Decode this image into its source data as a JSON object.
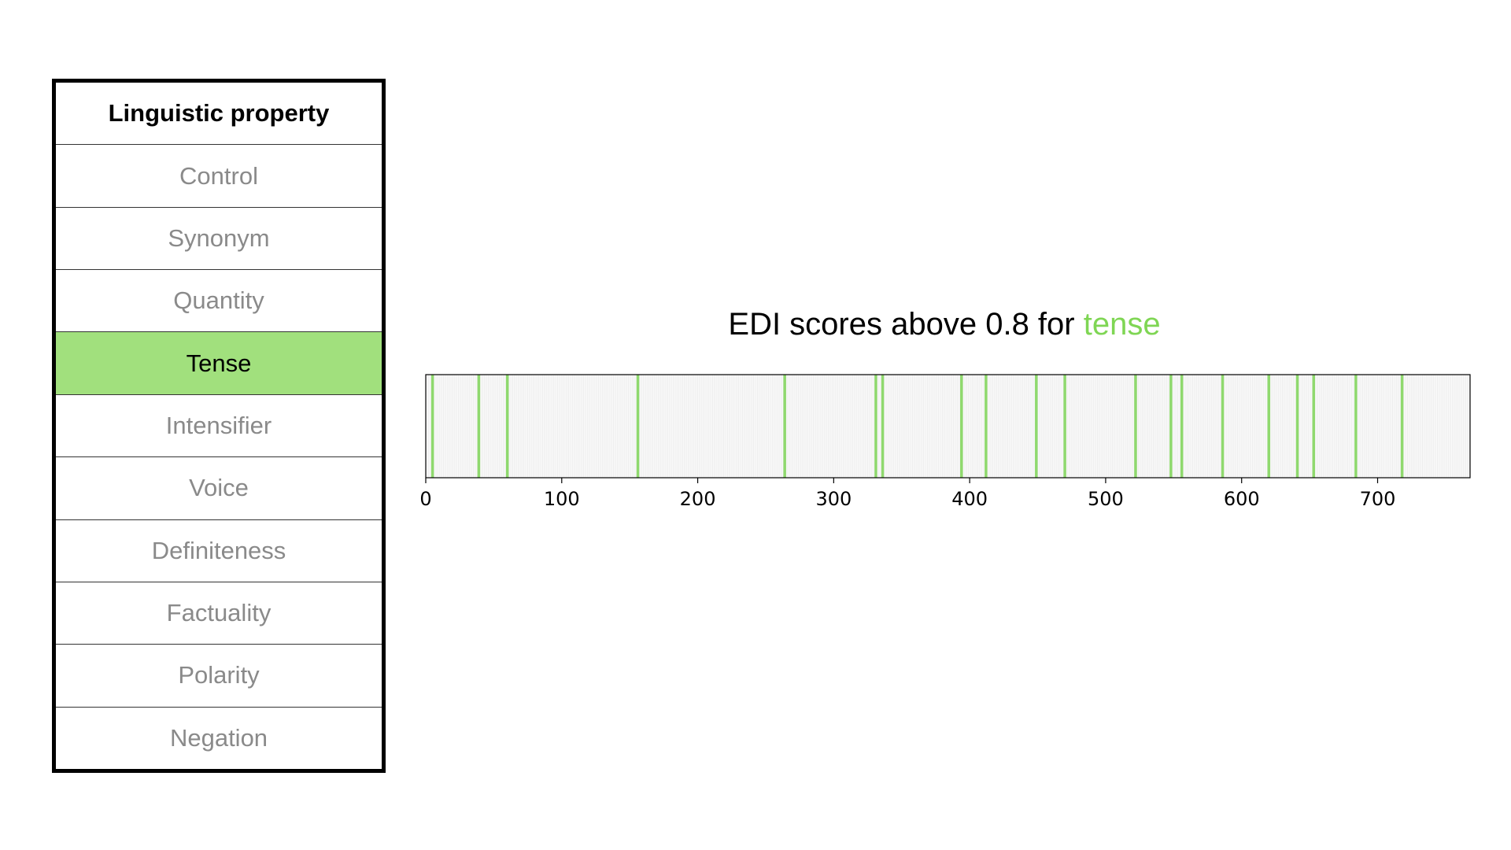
{
  "table": {
    "header": "Linguistic property",
    "rows": [
      {
        "label": "Control",
        "name": "control"
      },
      {
        "label": "Synonym",
        "name": "synonym"
      },
      {
        "label": "Quantity",
        "name": "quantity"
      },
      {
        "label": "Tense",
        "name": "tense",
        "selected": true
      },
      {
        "label": "Intensifier",
        "name": "intensifier"
      },
      {
        "label": "Voice",
        "name": "voice"
      },
      {
        "label": "Definiteness",
        "name": "definiteness"
      },
      {
        "label": "Factuality",
        "name": "factuality"
      },
      {
        "label": "Polarity",
        "name": "polarity"
      },
      {
        "label": "Negation",
        "name": "negation"
      }
    ]
  },
  "colors": {
    "highlight": "#a1e07d",
    "marker": "#8fd96e",
    "accent_text": "#7fd654",
    "muted_text": "#8a8a8a",
    "grid": "#ededed"
  },
  "chart_data": {
    "type": "bar",
    "title_prefix": "EDI scores above 0.8 for",
    "title_highlight": "tense",
    "xlim": [
      0,
      768
    ],
    "xticks": [
      0,
      100,
      200,
      300,
      400,
      500,
      600,
      700
    ],
    "xtick_labels": [
      "0",
      "100",
      "200",
      "300",
      "400",
      "500",
      "600",
      "700"
    ],
    "grid": true,
    "values": [
      5,
      39,
      60,
      156,
      264,
      331,
      336,
      394,
      412,
      449,
      470,
      522,
      548,
      556,
      586,
      620,
      641,
      653,
      684,
      718
    ]
  }
}
